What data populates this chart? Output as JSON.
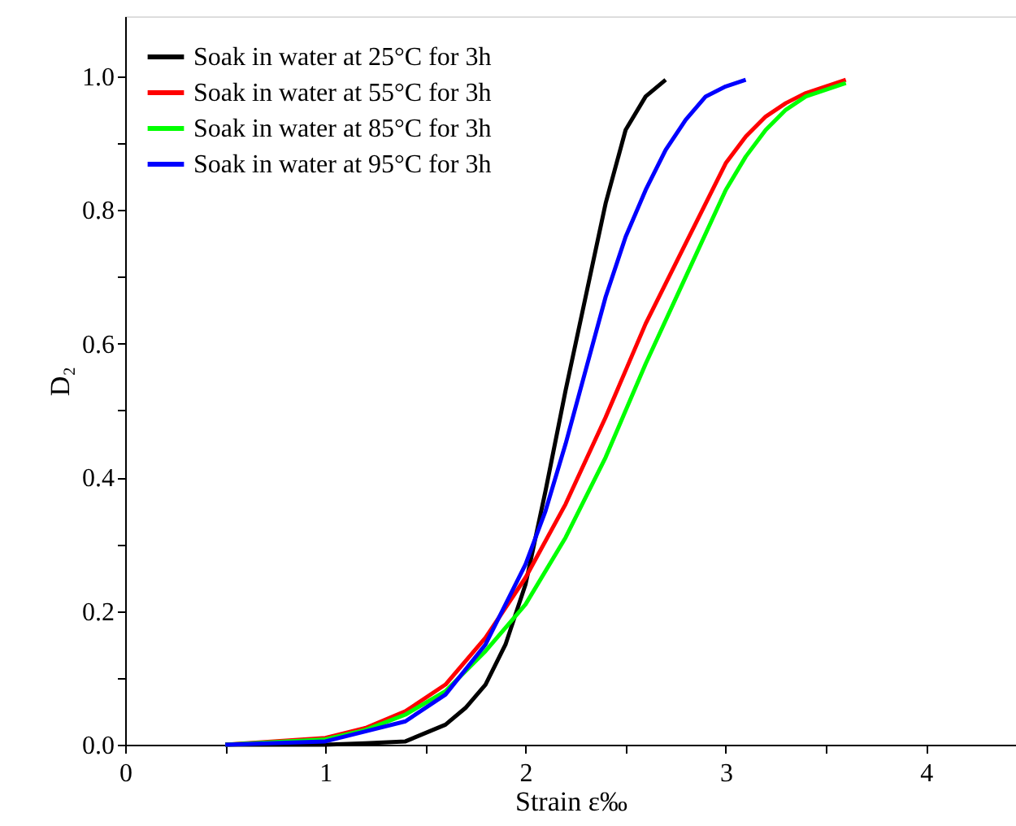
{
  "chart_data": {
    "type": "line",
    "xlabel": "Strain ε‰",
    "ylabel": "D₂",
    "xlim": [
      0,
      4.45
    ],
    "ylim": [
      0,
      1.09
    ],
    "xticks": [
      0,
      {
        "value": 0.5,
        "label": null
      },
      1,
      {
        "value": 1.5,
        "label": null
      },
      2,
      {
        "value": 2.5,
        "label": null
      },
      3,
      {
        "value": 3.5,
        "label": null
      },
      4
    ],
    "yticks": [
      {
        "value": 0,
        "label": "0.0"
      },
      {
        "value": 0.1,
        "label": null
      },
      0.2,
      {
        "value": 0.3,
        "label": null
      },
      0.4,
      {
        "value": 0.5,
        "label": null
      },
      0.6,
      {
        "value": 0.7,
        "label": null
      },
      0.8,
      {
        "value": 0.9,
        "label": null
      },
      {
        "value": 1,
        "label": "1.0"
      }
    ],
    "grid": false,
    "legend": "top left",
    "marker": "none",
    "line_style": "solid",
    "series": [
      {
        "name": "Soak in water at 25°C for 3h",
        "color": "#000000",
        "x": [
          0.5,
          1.0,
          1.2,
          1.4,
          1.6,
          1.7,
          1.8,
          1.9,
          2.0,
          2.1,
          2.2,
          2.3,
          2.4,
          2.5,
          2.6,
          2.7
        ],
        "values": [
          0,
          0,
          0.002,
          0.005,
          0.03,
          0.055,
          0.09,
          0.15,
          0.24,
          0.38,
          0.53,
          0.67,
          0.81,
          0.92,
          0.97,
          0.995
        ]
      },
      {
        "name": "Soak in water at 55°C for 3h",
        "color": "#ff0000",
        "x": [
          0.5,
          1.0,
          1.2,
          1.4,
          1.6,
          1.8,
          2.0,
          2.2,
          2.4,
          2.6,
          2.8,
          3.0,
          3.1,
          3.2,
          3.3,
          3.4,
          3.5,
          3.6
        ],
        "values": [
          0,
          0.01,
          0.025,
          0.05,
          0.09,
          0.16,
          0.25,
          0.36,
          0.49,
          0.63,
          0.75,
          0.87,
          0.91,
          0.94,
          0.96,
          0.975,
          0.985,
          0.995
        ]
      },
      {
        "name": "Soak in water at 85°C for 3h",
        "color": "#00ff00",
        "x": [
          0.5,
          1.0,
          1.2,
          1.4,
          1.6,
          1.8,
          2.0,
          2.2,
          2.4,
          2.6,
          2.8,
          3.0,
          3.1,
          3.2,
          3.3,
          3.4,
          3.5,
          3.6
        ],
        "values": [
          0,
          0.008,
          0.022,
          0.045,
          0.08,
          0.14,
          0.21,
          0.31,
          0.43,
          0.57,
          0.7,
          0.83,
          0.88,
          0.92,
          0.95,
          0.97,
          0.98,
          0.99
        ]
      },
      {
        "name": "Soak in water at 95°C for 3h",
        "color": "#0000ff",
        "x": [
          0.5,
          1.0,
          1.2,
          1.4,
          1.6,
          1.8,
          2.0,
          2.1,
          2.2,
          2.3,
          2.4,
          2.5,
          2.6,
          2.7,
          2.8,
          2.9,
          3.0,
          3.1
        ],
        "values": [
          0,
          0.005,
          0.02,
          0.035,
          0.075,
          0.15,
          0.27,
          0.35,
          0.45,
          0.56,
          0.67,
          0.76,
          0.83,
          0.89,
          0.935,
          0.97,
          0.985,
          0.995
        ]
      }
    ]
  }
}
